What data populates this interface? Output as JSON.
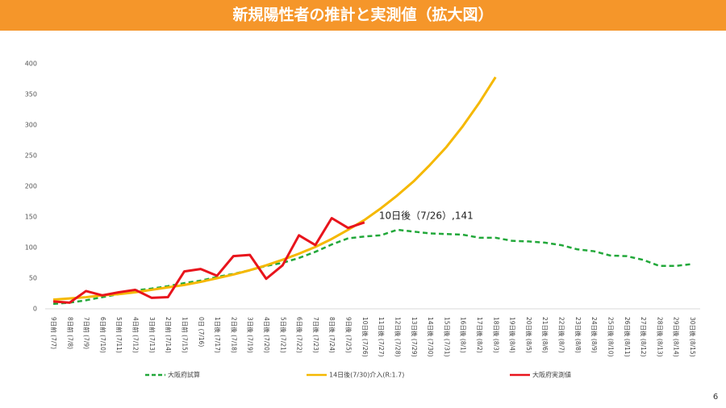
{
  "chart_data": {
    "type": "line",
    "title": "新規陽性者の推計と実測値（拡大図）",
    "page_number": "6",
    "annotation": "10日後（7/26）,141",
    "categories": [
      "9日前 (7/7)",
      "8日前 (7/8)",
      "7日前 (7/9)",
      "6日前 (7/10)",
      "5日前 (7/11)",
      "4日前 (7/12)",
      "3日前 (7/13)",
      "2日前 (7/14)",
      "1日前 (7/15)",
      "0日 (7/16)",
      "1日後 (7/17)",
      "2日後 (7/18)",
      "3日後 (7/19)",
      "4日後 (7/20)",
      "5日後 (7/21)",
      "6日後 (7/22)",
      "7日後 (7/23)",
      "8日後 (7/24)",
      "9日後 (7/25)",
      "10日後 (7/26)",
      "11日後 (7/27)",
      "12日後 (7/28)",
      "13日後 (7/29)",
      "14日後 (7/30)",
      "15日後 (7/31)",
      "16日後 (8/1)",
      "17日後 (8/2)",
      "18日後 (8/3)",
      "19日後 (8/4)",
      "20日後 (8/5)",
      "21日後 (8/6)",
      "22日後 (8/7)",
      "23日後 (8/8)",
      "24日後 (8/9)",
      "25日後 (8/10)",
      "26日後 (8/11)",
      "27日後 (8/12)",
      "28日後 (8/13)",
      "29日後 (8/14)",
      "30日後 (8/15)"
    ],
    "series": [
      {
        "name": "大阪府試算",
        "color": "#22a83a",
        "dashed": true,
        "values": [
          8,
          10,
          14,
          19,
          24,
          30,
          33,
          37,
          42,
          46,
          52,
          57,
          63,
          70,
          75,
          83,
          93,
          105,
          115,
          118,
          120,
          129,
          126,
          123,
          122,
          121,
          116,
          116,
          111,
          110,
          108,
          104,
          97,
          94,
          87,
          86,
          80,
          70,
          70,
          73
        ]
      },
      {
        "name": "14日後(7/30)介入(R:1.7)",
        "color": "#f5b800",
        "dashed": false,
        "values": [
          15,
          17,
          19,
          22,
          24,
          27,
          31,
          35,
          39,
          44,
          50,
          56,
          63,
          71,
          80,
          90,
          101,
          114,
          129,
          145,
          164,
          185,
          208,
          235,
          264,
          298,
          336,
          378,
          null,
          null,
          null,
          null,
          null,
          null,
          null,
          null,
          null,
          null,
          null,
          null
        ]
      },
      {
        "name": "大阪府実測値",
        "color": "#e8141c",
        "dashed": false,
        "values": [
          12,
          10,
          29,
          22,
          27,
          31,
          18,
          19,
          61,
          65,
          54,
          86,
          88,
          49,
          71,
          120,
          104,
          148,
          132,
          141,
          null,
          null,
          null,
          null,
          null,
          null,
          null,
          null,
          null,
          null,
          null,
          null,
          null,
          null,
          null,
          null,
          null,
          null,
          null,
          null
        ]
      }
    ],
    "ylim": [
      0,
      400
    ],
    "yticks": [
      0,
      50,
      100,
      150,
      200,
      250,
      300,
      350,
      400
    ],
    "grid": false,
    "legend": "bottom"
  }
}
